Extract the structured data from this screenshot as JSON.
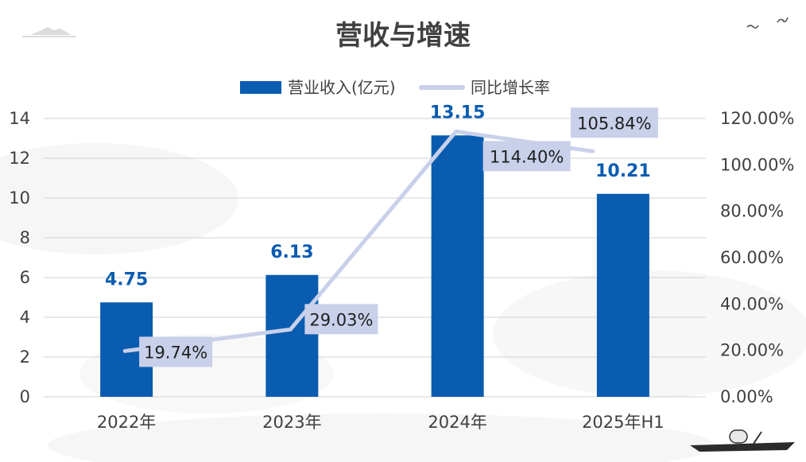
{
  "colors": {
    "bar": "#0a5cb0",
    "line": "#c9d0ea",
    "label_box": "#c9d0ea",
    "bar_label": "#0a5cb0",
    "grid": "#d9d9d9",
    "text": "#404040"
  },
  "chart_data": {
    "type": "bar+line",
    "title": "营收与增速",
    "categories": [
      "2022年",
      "2023年",
      "2024年",
      "2025年H1"
    ],
    "series": [
      {
        "name": "营业收入(亿元)",
        "type": "bar",
        "axis": "left",
        "values": [
          4.75,
          6.13,
          13.15,
          10.21
        ],
        "labels": [
          "4.75",
          "6.13",
          "13.15",
          "10.21"
        ]
      },
      {
        "name": "同比增长率",
        "type": "line",
        "axis": "right",
        "values": [
          19.74,
          29.03,
          114.4,
          105.84
        ],
        "labels": [
          "19.74%",
          "29.03%",
          "114.40%",
          "105.84%"
        ]
      }
    ],
    "left_axis": {
      "ylim": [
        0,
        14
      ],
      "ticks": [
        "0",
        "2",
        "4",
        "6",
        "8",
        "10",
        "12",
        "14"
      ]
    },
    "right_axis": {
      "ylim": [
        0,
        120
      ],
      "ticks": [
        "0.00%",
        "20.00%",
        "40.00%",
        "60.00%",
        "80.00%",
        "100.00%",
        "120.00%"
      ]
    },
    "legend": "top-center",
    "grid": true
  }
}
